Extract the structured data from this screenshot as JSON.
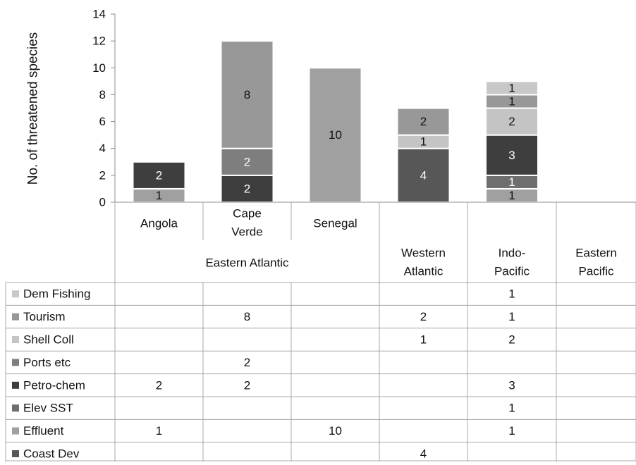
{
  "chart_data": {
    "type": "bar",
    "stacked": true,
    "ylabel": "No. of threatened species",
    "ylim": [
      0,
      14
    ],
    "yticks": [
      "0",
      "2",
      "4",
      "6",
      "8",
      "10",
      "12",
      "14"
    ],
    "grid": false,
    "legend_placement": "table-left",
    "groups": [
      {
        "label": "Eastern Atlantic",
        "columns": [
          "Angola",
          "Cape Verde",
          "Senegal"
        ]
      },
      {
        "label": "Western Atlantic",
        "columns": [
          "Western Atlantic"
        ]
      },
      {
        "label": "Indo-Pacific",
        "columns": [
          "Indo-Pacific"
        ]
      },
      {
        "label": "Eastern Pacific",
        "columns": [
          "Eastern Pacific"
        ]
      }
    ],
    "categories": [
      "Angola",
      "Cape Verde",
      "Senegal",
      "",
      "",
      ""
    ],
    "series": [
      {
        "name": "Dem Fishing",
        "color": "#c8c8c8",
        "values": [
          null,
          null,
          null,
          null,
          1,
          null
        ]
      },
      {
        "name": "Tourism",
        "color": "#989898",
        "values": [
          null,
          8,
          null,
          2,
          1,
          null
        ]
      },
      {
        "name": "Shell Coll",
        "color": "#c4c4c4",
        "values": [
          null,
          null,
          null,
          1,
          2,
          null
        ]
      },
      {
        "name": "Ports etc",
        "color": "#7e7e7e",
        "values": [
          null,
          2,
          null,
          null,
          null,
          null
        ]
      },
      {
        "name": "Petro-chem",
        "color": "#3e3e3e",
        "values": [
          2,
          2,
          null,
          null,
          3,
          null
        ]
      },
      {
        "name": "Elev SST",
        "color": "#6e6e6e",
        "values": [
          null,
          null,
          null,
          null,
          1,
          null
        ]
      },
      {
        "name": "Effluent",
        "color": "#a0a0a0",
        "values": [
          1,
          null,
          10,
          null,
          1,
          null
        ]
      },
      {
        "name": "Coast Dev",
        "color": "#575757",
        "values": [
          null,
          null,
          null,
          4,
          null,
          null
        ]
      }
    ]
  }
}
